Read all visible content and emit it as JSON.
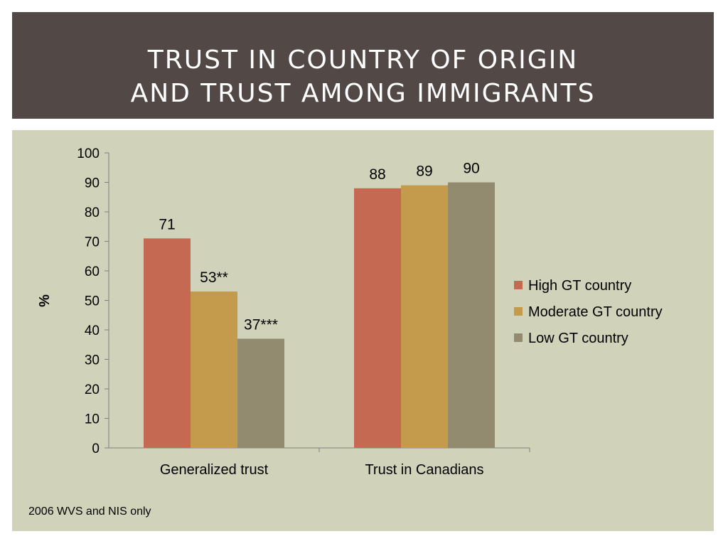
{
  "slide": {
    "title_line1": "TRUST IN COUNTRY OF ORIGIN",
    "title_line2": "AND TRUST AMONG IMMIGRANTS",
    "footnote": "2006 WVS and NIS only"
  },
  "colors": {
    "title_band": "#524846",
    "panel": "#d0d3b9"
  },
  "chart_data": {
    "type": "bar",
    "categories": [
      "Generalized trust",
      "Trust in Canadians"
    ],
    "series": [
      {
        "name": "High GT country",
        "values": [
          71,
          88
        ],
        "labels": [
          "71",
          "88"
        ],
        "color": "#c56953"
      },
      {
        "name": "Moderate GT country",
        "values": [
          53,
          89
        ],
        "labels": [
          "53**",
          "89"
        ],
        "color": "#c49a4c"
      },
      {
        "name": "Low GT country",
        "values": [
          37,
          90
        ],
        "labels": [
          "37***",
          "90"
        ],
        "color": "#938b70"
      }
    ],
    "ylabel": "%",
    "ylim": [
      0,
      100
    ],
    "yticks": [
      0,
      10,
      20,
      30,
      40,
      50,
      60,
      70,
      80,
      90,
      100
    ],
    "legend_position": "right",
    "grid": false
  }
}
